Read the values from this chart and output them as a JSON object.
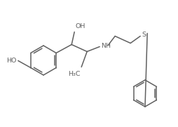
{
  "bg_color": "#ffffff",
  "line_color": "#606060",
  "line_width": 1.1,
  "font_size": 6.8,
  "font_color": "#606060",
  "figsize": [
    2.55,
    1.81
  ],
  "dpi": 100,
  "xlim": [
    0,
    255
  ],
  "ylim": [
    0,
    181
  ]
}
